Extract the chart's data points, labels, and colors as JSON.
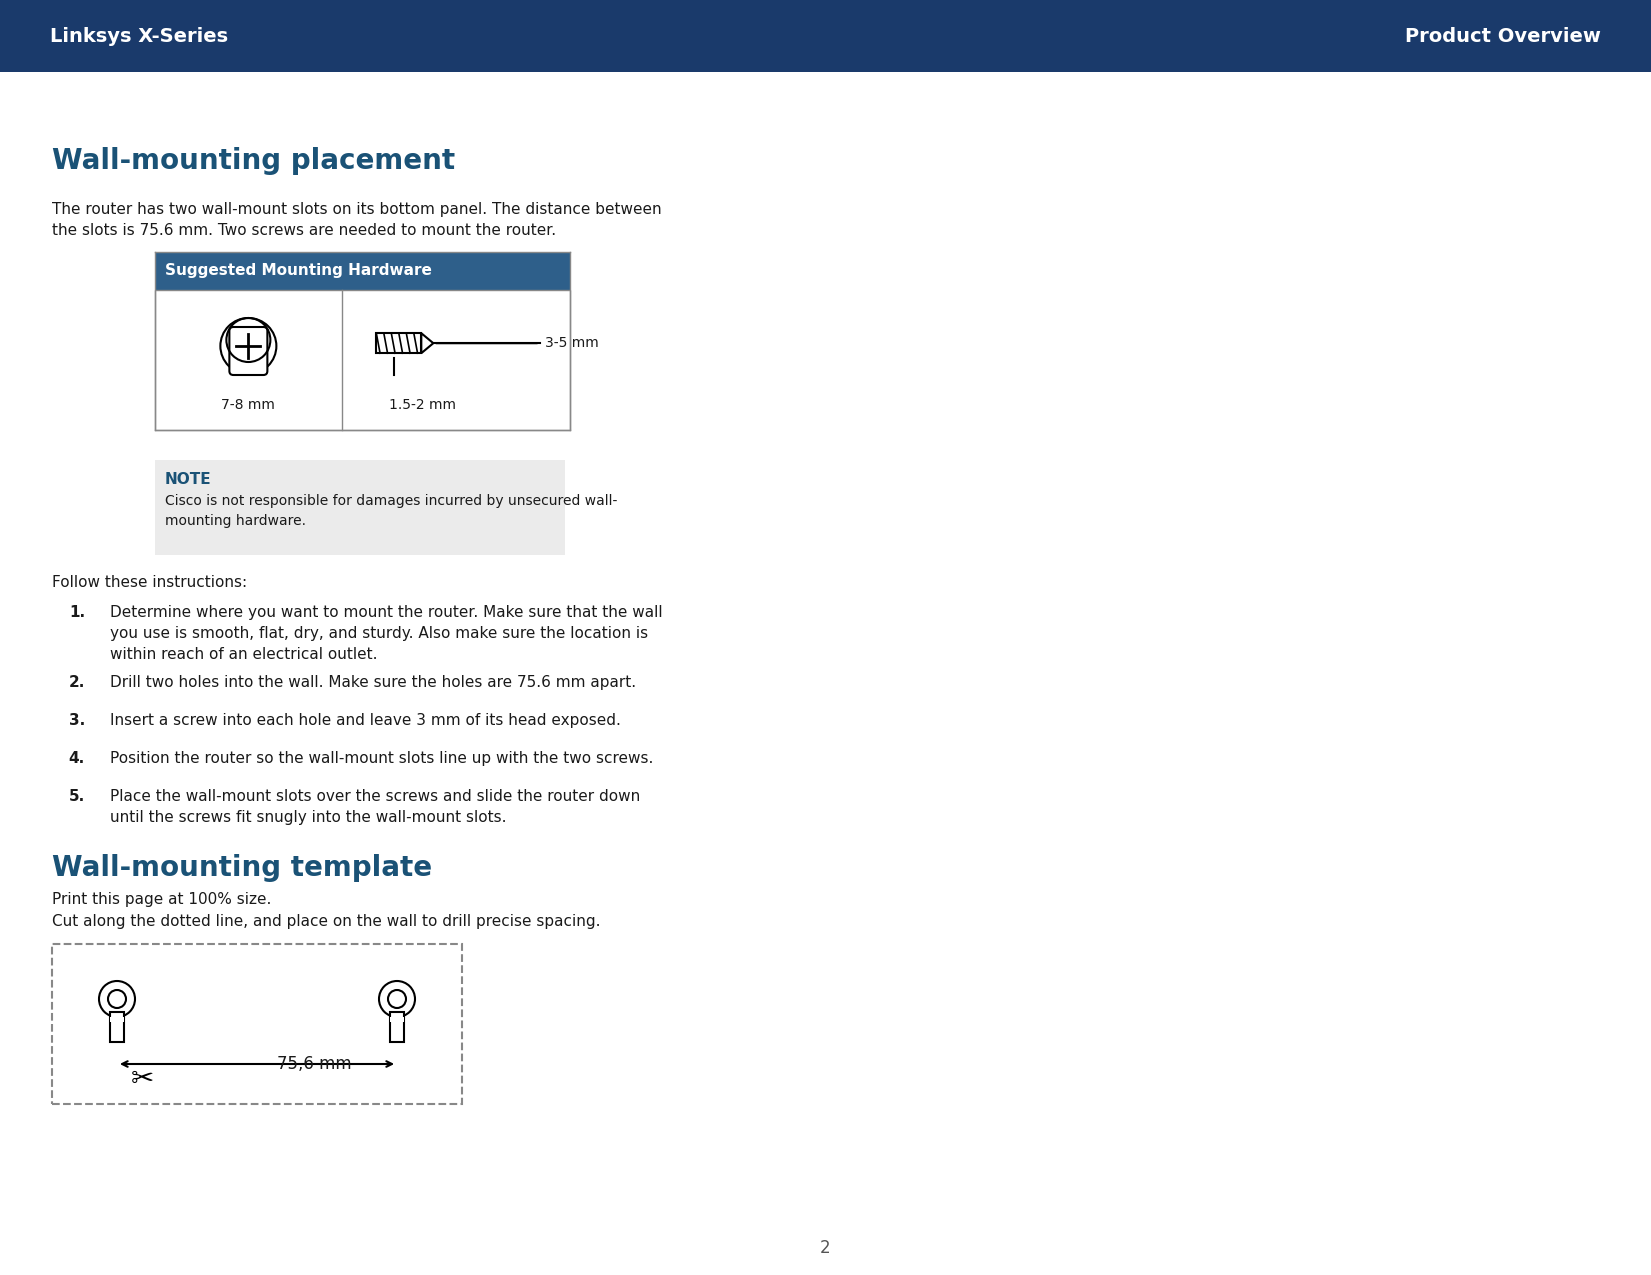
{
  "header_bg_color": "#1a3a6b",
  "header_text_color": "#ffffff",
  "header_left": "Linksys X-Series",
  "header_right": "Product Overview",
  "header_fontsize": 14,
  "page_bg": "#ffffff",
  "title_placement": "Wall-mounting placement",
  "title_color": "#1a5276",
  "title_fontsize": 20,
  "body_text_color": "#1a1a1a",
  "body_fontsize": 11,
  "intro_text": "The router has two wall-mount slots on its bottom panel. The distance between\nthe slots is 75.6 mm. Two screws are needed to mount the router.",
  "table_header": "Suggested Mounting Hardware",
  "table_header_bg": "#2e5f8a",
  "table_header_color": "#ffffff",
  "table_cell1_label": "7-8 mm",
  "table_cell2_label": "1.5-2 mm",
  "table_cell2_side": "3-5 mm",
  "note_bg": "#ebebeb",
  "note_title": "NOTE",
  "note_title_color": "#1a5276",
  "note_text": "Cisco is not responsible for damages incurred by unsecured wall-\nmounting hardware.",
  "follow_text": "Follow these instructions:",
  "instructions": [
    "Determine where you want to mount the router. Make sure that the wall\nyou use is smooth, flat, dry, and sturdy. Also make sure the location is\nwithin reach of an electrical outlet.",
    "Drill two holes into the wall. Make sure the holes are 75.6 mm apart.",
    "Insert a screw into each hole and leave 3 mm of its head exposed.",
    "Position the router so the wall-mount slots line up with the two screws.",
    "Place the wall-mount slots over the screws and slide the router down\nuntil the screws fit snugly into the wall-mount slots."
  ],
  "section2_title": "Wall-mounting template",
  "section2_text1": "Print this page at 100% size.",
  "section2_text2": "Cut along the dotted line, and place on the wall to drill precise spacing.",
  "template_label": "75,6 mm",
  "page_number": "2",
  "page_number_color": "#555555"
}
